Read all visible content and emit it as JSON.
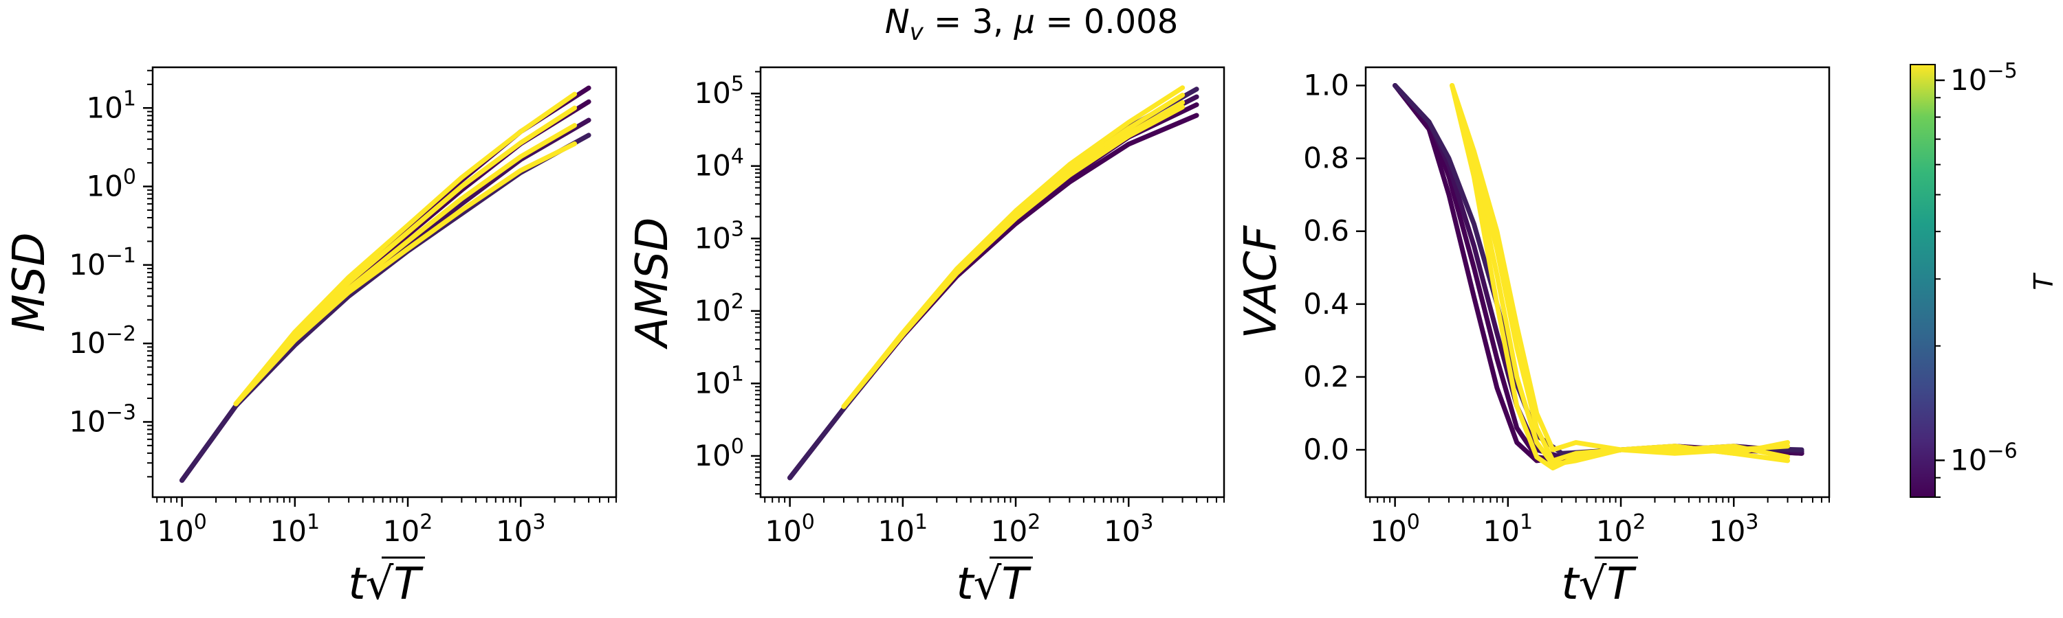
{
  "figure": {
    "title_parts": {
      "n": "N",
      "n_sub": "v",
      "eq_mid": " = 3, ",
      "mu": "μ",
      "eq_end": " = 0.008"
    },
    "xlabel_parts": {
      "t": "t",
      "sqrt": "√",
      "T": "T"
    },
    "colors": {
      "low": "#440154",
      "mid": "#21918c",
      "high": "#fde725"
    }
  },
  "chart_data": [
    {
      "type": "line",
      "id": "msd",
      "ylabel": "MSD",
      "xscale": "log",
      "yscale": "log",
      "xlim": [
        0.55,
        7000
      ],
      "ylim": [
        0.00011,
        33
      ],
      "x_ticks": [
        {
          "exp": "0",
          "value": 1
        },
        {
          "exp": "1",
          "value": 10
        },
        {
          "exp": "2",
          "value": 100
        },
        {
          "exp": "3",
          "value": 1000
        }
      ],
      "y_ticks": [
        {
          "exp": "−3",
          "value": 0.001
        },
        {
          "exp": "−2",
          "value": 0.01
        },
        {
          "exp": "−1",
          "value": 0.1
        },
        {
          "exp": "0",
          "value": 1
        },
        {
          "exp": "1",
          "value": 10
        }
      ],
      "series": [
        {
          "c": 0.0,
          "x": [
            1,
            3,
            10,
            30,
            100,
            300,
            1000,
            4000
          ],
          "y": [
            0.00018,
            0.0016,
            0.012,
            0.06,
            0.3,
            1.2,
            5,
            18
          ]
        },
        {
          "c": 0.0,
          "x": [
            1,
            3,
            10,
            30,
            100,
            300,
            1000,
            4000
          ],
          "y": [
            0.00018,
            0.0016,
            0.011,
            0.05,
            0.24,
            0.9,
            3.5,
            12
          ]
        },
        {
          "c": 0.05,
          "x": [
            1,
            3,
            10,
            30,
            100,
            300,
            1000,
            4000
          ],
          "y": [
            0.00018,
            0.0016,
            0.01,
            0.045,
            0.18,
            0.6,
            2.2,
            7
          ]
        },
        {
          "c": 0.1,
          "x": [
            1,
            3,
            10,
            30,
            100,
            300,
            1000,
            4000
          ],
          "y": [
            0.00018,
            0.0016,
            0.0095,
            0.04,
            0.15,
            0.45,
            1.5,
            4.5
          ]
        },
        {
          "c": 1.0,
          "x": [
            3,
            10,
            30,
            100,
            300,
            1000,
            3000
          ],
          "y": [
            0.0017,
            0.014,
            0.07,
            0.32,
            1.3,
            5,
            15
          ]
        },
        {
          "c": 1.0,
          "x": [
            3,
            10,
            30,
            100,
            300,
            1000,
            3000
          ],
          "y": [
            0.0017,
            0.013,
            0.06,
            0.26,
            1.0,
            3.6,
            10
          ]
        },
        {
          "c": 1.0,
          "x": [
            3,
            10,
            30,
            100,
            300,
            1000,
            3000
          ],
          "y": [
            0.0017,
            0.012,
            0.05,
            0.2,
            0.7,
            2.4,
            6
          ]
        },
        {
          "c": 1.0,
          "x": [
            3,
            10,
            30,
            100,
            300,
            1000,
            3000
          ],
          "y": [
            0.0017,
            0.011,
            0.045,
            0.16,
            0.5,
            1.6,
            3.5
          ]
        }
      ]
    },
    {
      "type": "line",
      "id": "amsd",
      "ylabel": "AMSD",
      "xscale": "log",
      "yscale": "log",
      "xlim": [
        0.55,
        7000
      ],
      "ylim": [
        0.27,
        230000
      ],
      "x_ticks": [
        {
          "exp": "0",
          "value": 1
        },
        {
          "exp": "1",
          "value": 10
        },
        {
          "exp": "2",
          "value": 100
        },
        {
          "exp": "3",
          "value": 1000
        }
      ],
      "y_ticks": [
        {
          "exp": "0",
          "value": 1
        },
        {
          "exp": "1",
          "value": 10
        },
        {
          "exp": "2",
          "value": 100
        },
        {
          "exp": "3",
          "value": 1000
        },
        {
          "exp": "4",
          "value": 10000
        },
        {
          "exp": "5",
          "value": 100000
        }
      ],
      "series": [
        {
          "c": 0.0,
          "x": [
            1,
            3,
            10,
            30,
            100,
            300,
            1000,
            4000
          ],
          "y": [
            0.5,
            4.5,
            45,
            300,
            1600,
            6000,
            20000,
            50000
          ]
        },
        {
          "c": 0.0,
          "x": [
            1,
            3,
            10,
            30,
            100,
            300,
            1000,
            4000
          ],
          "y": [
            0.5,
            4.5,
            46,
            320,
            1800,
            7000,
            25000,
            70000
          ]
        },
        {
          "c": 0.05,
          "x": [
            1,
            3,
            10,
            30,
            100,
            300,
            1000,
            4000
          ],
          "y": [
            0.5,
            4.5,
            47,
            340,
            2000,
            8000,
            30000,
            90000
          ]
        },
        {
          "c": 0.1,
          "x": [
            1,
            3,
            10,
            30,
            100,
            300,
            1000,
            4000
          ],
          "y": [
            0.5,
            4.5,
            48,
            360,
            2200,
            9000,
            34000,
            115000
          ]
        },
        {
          "c": 1.0,
          "x": [
            3,
            10,
            30,
            100,
            300,
            1000,
            3000
          ],
          "y": [
            4.8,
            50,
            380,
            2400,
            10500,
            40000,
            120000
          ]
        },
        {
          "c": 1.0,
          "x": [
            3,
            10,
            30,
            100,
            300,
            1000,
            3000
          ],
          "y": [
            4.8,
            49,
            360,
            2200,
            9000,
            33000,
            95000
          ]
        },
        {
          "c": 1.0,
          "x": [
            3,
            10,
            30,
            100,
            300,
            1000,
            3000
          ],
          "y": [
            4.8,
            48,
            340,
            2000,
            8000,
            28000,
            75000
          ]
        },
        {
          "c": 1.0,
          "x": [
            3,
            10,
            30,
            100,
            300,
            1000,
            3000
          ],
          "y": [
            4.8,
            47,
            330,
            1900,
            7500,
            26000,
            65000
          ]
        }
      ]
    },
    {
      "type": "line",
      "id": "vacf",
      "ylabel": "VACF",
      "xscale": "log",
      "yscale": "linear",
      "xlim": [
        0.55,
        7000
      ],
      "ylim": [
        -0.13,
        1.05
      ],
      "x_ticks": [
        {
          "exp": "0",
          "value": 1
        },
        {
          "exp": "1",
          "value": 10
        },
        {
          "exp": "2",
          "value": 100
        },
        {
          "exp": "3",
          "value": 1000
        }
      ],
      "y_ticks": [
        {
          "label": "0.0",
          "value": 0.0
        },
        {
          "label": "0.2",
          "value": 0.2
        },
        {
          "label": "0.4",
          "value": 0.4
        },
        {
          "label": "0.6",
          "value": 0.6
        },
        {
          "label": "0.8",
          "value": 0.8
        },
        {
          "label": "1.0",
          "value": 1.0
        }
      ],
      "series": [
        {
          "c": 0.0,
          "x": [
            1,
            2,
            3,
            5,
            8,
            12,
            18,
            30,
            100,
            300,
            1000,
            4000
          ],
          "y": [
            1.0,
            0.88,
            0.7,
            0.42,
            0.17,
            0.02,
            -0.03,
            -0.02,
            0.0,
            0.005,
            0.0,
            -0.01
          ]
        },
        {
          "c": 0.0,
          "x": [
            1,
            2,
            3,
            5,
            8,
            12,
            18,
            30,
            100,
            300,
            1000,
            4000
          ],
          "y": [
            1.0,
            0.9,
            0.75,
            0.5,
            0.25,
            0.06,
            -0.02,
            -0.03,
            0.0,
            0.01,
            0.0,
            -0.01
          ]
        },
        {
          "c": 0.05,
          "x": [
            1,
            2,
            3,
            5,
            8,
            12,
            18,
            30,
            100,
            300,
            1000,
            4000
          ],
          "y": [
            1.0,
            0.9,
            0.78,
            0.56,
            0.32,
            0.12,
            0.0,
            -0.02,
            0.0,
            0.0,
            0.01,
            -0.005
          ]
        },
        {
          "c": 0.1,
          "x": [
            1,
            2,
            3,
            5,
            8,
            12,
            18,
            30,
            100,
            300,
            1000,
            4000
          ],
          "y": [
            1.0,
            0.9,
            0.8,
            0.62,
            0.4,
            0.18,
            0.04,
            -0.01,
            0.0,
            0.0,
            0.005,
            0.0
          ]
        },
        {
          "c": 1.0,
          "x": [
            3.2,
            5,
            8,
            12,
            18,
            25,
            40,
            100,
            300,
            1000,
            3000
          ],
          "y": [
            1.0,
            0.75,
            0.4,
            0.12,
            -0.02,
            -0.05,
            -0.02,
            0.0,
            0.01,
            -0.01,
            0.02
          ]
        },
        {
          "c": 1.0,
          "x": [
            3.2,
            5,
            8,
            12,
            18,
            25,
            40,
            100,
            300,
            1000,
            3000
          ],
          "y": [
            1.0,
            0.78,
            0.48,
            0.2,
            0.02,
            -0.04,
            -0.03,
            0.0,
            0.0,
            0.01,
            -0.02
          ]
        },
        {
          "c": 1.0,
          "x": [
            3.2,
            5,
            8,
            12,
            18,
            25,
            40,
            100,
            300,
            1000,
            3000
          ],
          "y": [
            1.0,
            0.8,
            0.55,
            0.28,
            0.06,
            -0.03,
            -0.01,
            0.0,
            -0.01,
            0.0,
            0.01
          ]
        },
        {
          "c": 1.0,
          "x": [
            3.2,
            5,
            8,
            12,
            18,
            25,
            40,
            100,
            300,
            1000,
            3000
          ],
          "y": [
            1.0,
            0.82,
            0.6,
            0.34,
            0.1,
            0.0,
            0.02,
            0.0,
            0.01,
            -0.01,
            -0.03
          ]
        }
      ]
    }
  ],
  "colorbar": {
    "label": "T",
    "scale": "log",
    "range": [
      8e-07,
      1.1e-05
    ],
    "ticks": [
      {
        "base": "10",
        "exp": "−5",
        "value": 1e-05
      },
      {
        "base": "10",
        "exp": "−6",
        "value": 1e-06
      }
    ]
  }
}
